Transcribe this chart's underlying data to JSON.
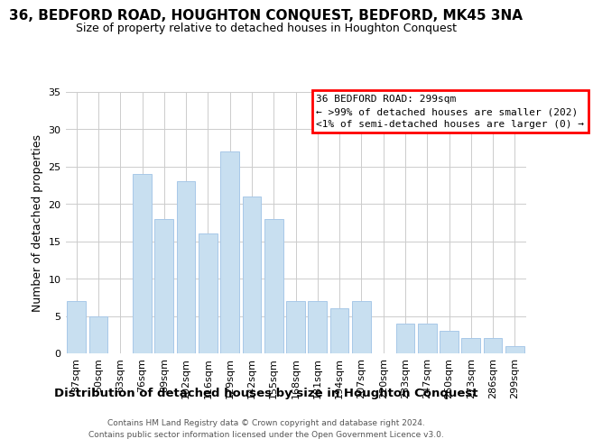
{
  "title": "36, BEDFORD ROAD, HOUGHTON CONQUEST, BEDFORD, MK45 3NA",
  "subtitle": "Size of property relative to detached houses in Houghton Conquest",
  "xlabel": "Distribution of detached houses by size in Houghton Conquest",
  "ylabel": "Number of detached properties",
  "bar_color": "#c8dff0",
  "bar_edge_color": "#a8c8e8",
  "categories": [
    "37sqm",
    "50sqm",
    "63sqm",
    "76sqm",
    "89sqm",
    "102sqm",
    "116sqm",
    "129sqm",
    "142sqm",
    "155sqm",
    "168sqm",
    "181sqm",
    "194sqm",
    "207sqm",
    "220sqm",
    "233sqm",
    "247sqm",
    "260sqm",
    "273sqm",
    "286sqm",
    "299sqm"
  ],
  "values": [
    7,
    5,
    0,
    24,
    18,
    23,
    16,
    27,
    21,
    18,
    7,
    7,
    6,
    7,
    0,
    4,
    4,
    3,
    2,
    2,
    1
  ],
  "ylim": [
    0,
    35
  ],
  "yticks": [
    0,
    5,
    10,
    15,
    20,
    25,
    30,
    35
  ],
  "legend_title": "36 BEDFORD ROAD: 299sqm",
  "legend_line1": "← >99% of detached houses are smaller (202)",
  "legend_line2": "<1% of semi-detached houses are larger (0) →",
  "legend_box_color": "white",
  "legend_box_edge_color": "red",
  "footer_line1": "Contains HM Land Registry data © Crown copyright and database right 2024.",
  "footer_line2": "Contains public sector information licensed under the Open Government Licence v3.0.",
  "background_color": "white",
  "grid_color": "#cccccc",
  "title_fontsize": 11,
  "subtitle_fontsize": 9,
  "ylabel_fontsize": 9,
  "xlabel_fontsize": 9.5,
  "tick_fontsize": 8,
  "legend_fontsize": 8,
  "footer_fontsize": 6.5
}
